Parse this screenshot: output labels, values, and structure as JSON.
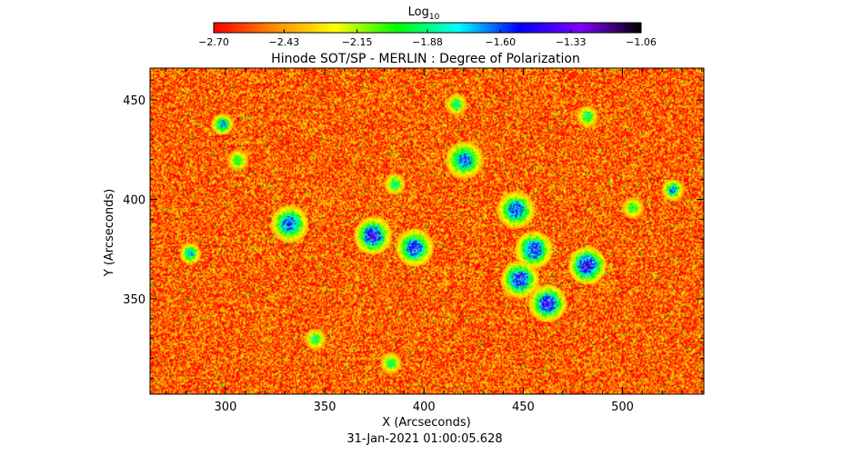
{
  "chart_data": {
    "type": "heatmap",
    "title": "Hinode SOT/SP - MERLIN : Degree of Polarization",
    "xlabel": "X (Arcseconds)",
    "ylabel": "Y (Arcseconds)",
    "xlim": [
      262,
      541
    ],
    "ylim": [
      302,
      466
    ],
    "xticks": [
      300,
      350,
      400,
      450,
      500
    ],
    "yticks": [
      350,
      400,
      450
    ],
    "colorbar": {
      "label_base": "Log",
      "label_sub": "10",
      "range": [
        -2.7,
        -1.06
      ],
      "ticks": [
        "-2.70",
        "-2.43",
        "-2.15",
        "-1.88",
        "-1.60",
        "-1.33",
        "-1.06"
      ],
      "colors": [
        "#ff0000",
        "#ff8c00",
        "#ffff00",
        "#00ff00",
        "#00ffff",
        "#0000ff",
        "#8000ff",
        "#000000"
      ]
    },
    "background_level": -2.55,
    "high_polarization_regions": [
      {
        "x": 374,
        "y": 382,
        "level": -1.25
      },
      {
        "x": 395,
        "y": 376,
        "level": -1.35
      },
      {
        "x": 332,
        "y": 388,
        "level": -1.4
      },
      {
        "x": 420,
        "y": 420,
        "level": -1.45
      },
      {
        "x": 446,
        "y": 395,
        "level": -1.4
      },
      {
        "x": 455,
        "y": 375,
        "level": -1.35
      },
      {
        "x": 448,
        "y": 360,
        "level": -1.3
      },
      {
        "x": 462,
        "y": 348,
        "level": -1.3
      },
      {
        "x": 482,
        "y": 367,
        "level": -1.2
      },
      {
        "x": 298,
        "y": 438,
        "level": -1.55
      },
      {
        "x": 525,
        "y": 405,
        "level": -1.55
      },
      {
        "x": 282,
        "y": 373,
        "level": -1.6
      },
      {
        "x": 385,
        "y": 408,
        "level": -1.75
      },
      {
        "x": 345,
        "y": 330,
        "level": -1.8
      },
      {
        "x": 383,
        "y": 318,
        "level": -1.8
      },
      {
        "x": 416,
        "y": 448,
        "level": -1.75
      },
      {
        "x": 482,
        "y": 442,
        "level": -1.8
      },
      {
        "x": 505,
        "y": 396,
        "level": -1.85
      },
      {
        "x": 306,
        "y": 420,
        "level": -1.85
      }
    ]
  },
  "timestamp": "31-Jan-2021 01:00:05.628"
}
